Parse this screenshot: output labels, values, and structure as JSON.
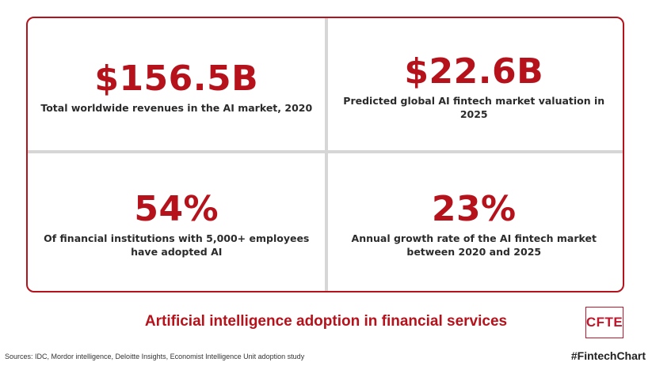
{
  "stats": [
    {
      "value": "$156.5B",
      "description": "Total worldwide revenues in the AI market, 2020"
    },
    {
      "value": "$22.6B",
      "description": "Predicted global AI fintech market valuation in 2025"
    },
    {
      "value": "54%",
      "description": "Of financial institutions with 5,000+ employees have adopted AI"
    },
    {
      "value": "23%",
      "description": "Annual growth rate of the AI fintech market between 2020 and 2025"
    }
  ],
  "title": "Artificial intelligence adoption in financial services",
  "sources": "Sources: IDC, Mordor intelligence, Deloitte Insights, Economist Intelligence Unit adoption study",
  "logo": {
    "text": "CFTE"
  },
  "hashtag": "#FintechChart",
  "colors": {
    "accent": "#b5121b",
    "divider": "#d6d6d6",
    "text": "#2b2b2b"
  }
}
